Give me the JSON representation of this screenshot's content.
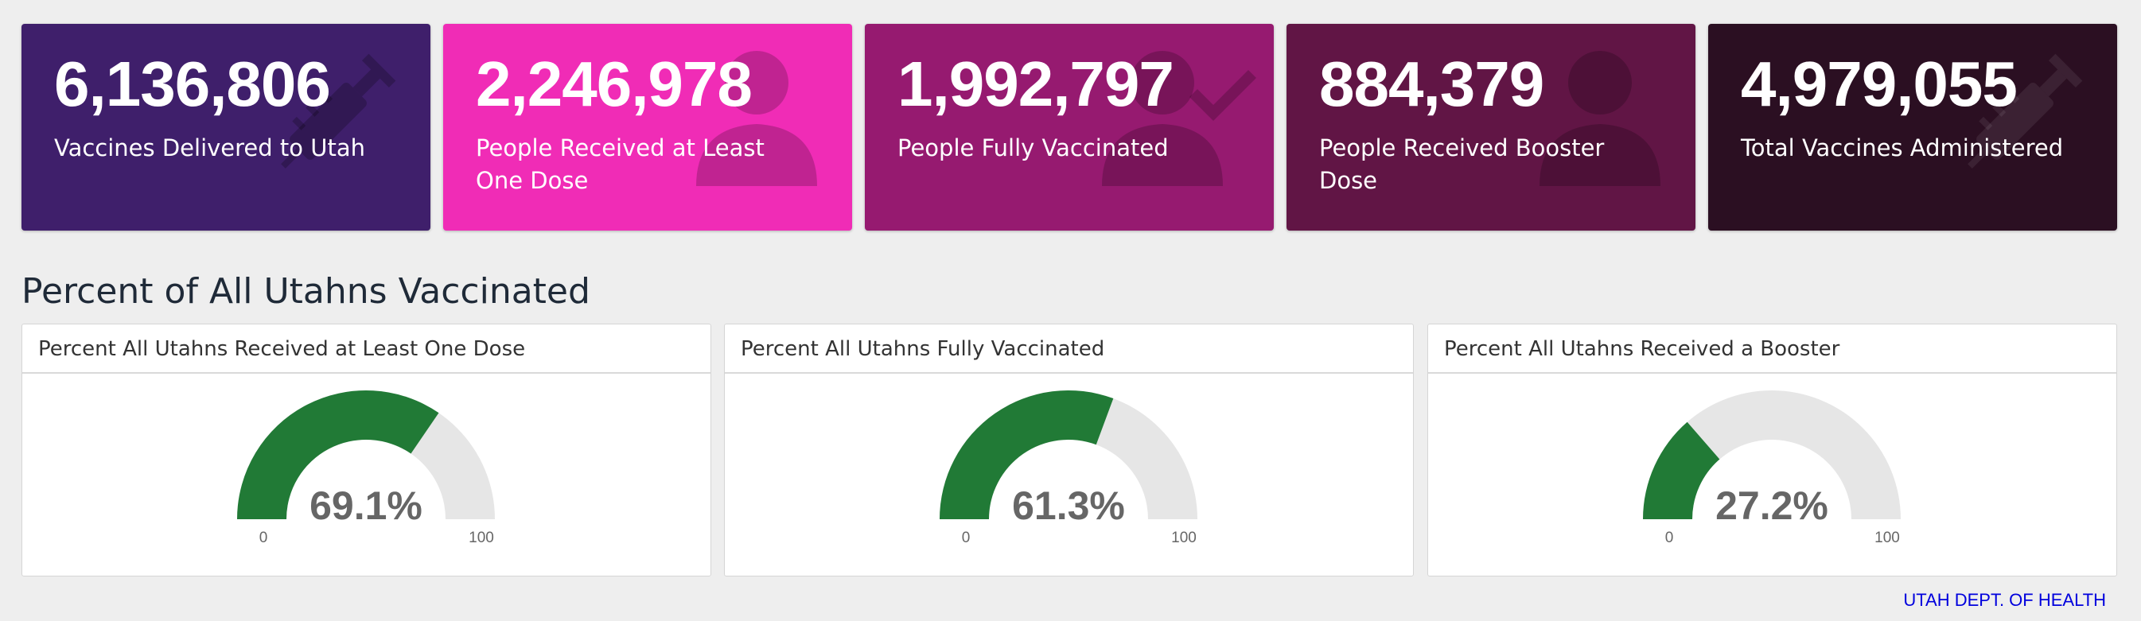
{
  "cards": [
    {
      "value": "6,136,806",
      "label": "Vaccines Delivered to Utah",
      "color": "#3f1f6b",
      "icon": "syringe-icon"
    },
    {
      "value": "2,246,978",
      "label": "People Received at Least One Dose",
      "color": "#f02cb6",
      "icon": "person-icon"
    },
    {
      "value": "1,992,797",
      "label": "People Fully Vaccinated",
      "color": "#961a70",
      "icon": "person-check-icon"
    },
    {
      "value": "884,379",
      "label": "People Received Booster Dose",
      "color": "#611545",
      "icon": "person-icon"
    },
    {
      "value": "4,979,055",
      "label": "Total Vaccines Administered",
      "color": "#2b0f22",
      "icon": "syringe-icon"
    }
  ],
  "section_title": "Percent of All Utahns Vaccinated",
  "gauges": [
    {
      "title": "Percent All Utahns Received at Least One Dose",
      "value": 69.1,
      "display": "69.1%",
      "min": "0",
      "max": "100"
    },
    {
      "title": "Percent All Utahns Fully Vaccinated",
      "value": 61.3,
      "display": "61.3%",
      "min": "0",
      "max": "100"
    },
    {
      "title": "Percent All Utahns Received a Booster",
      "value": 27.2,
      "display": "27.2%",
      "min": "0",
      "max": "100"
    }
  ],
  "gauge_colors": {
    "fill": "#217a36",
    "track": "#e6e6e6"
  },
  "footer": "UTAH DEPT. OF HEALTH"
}
